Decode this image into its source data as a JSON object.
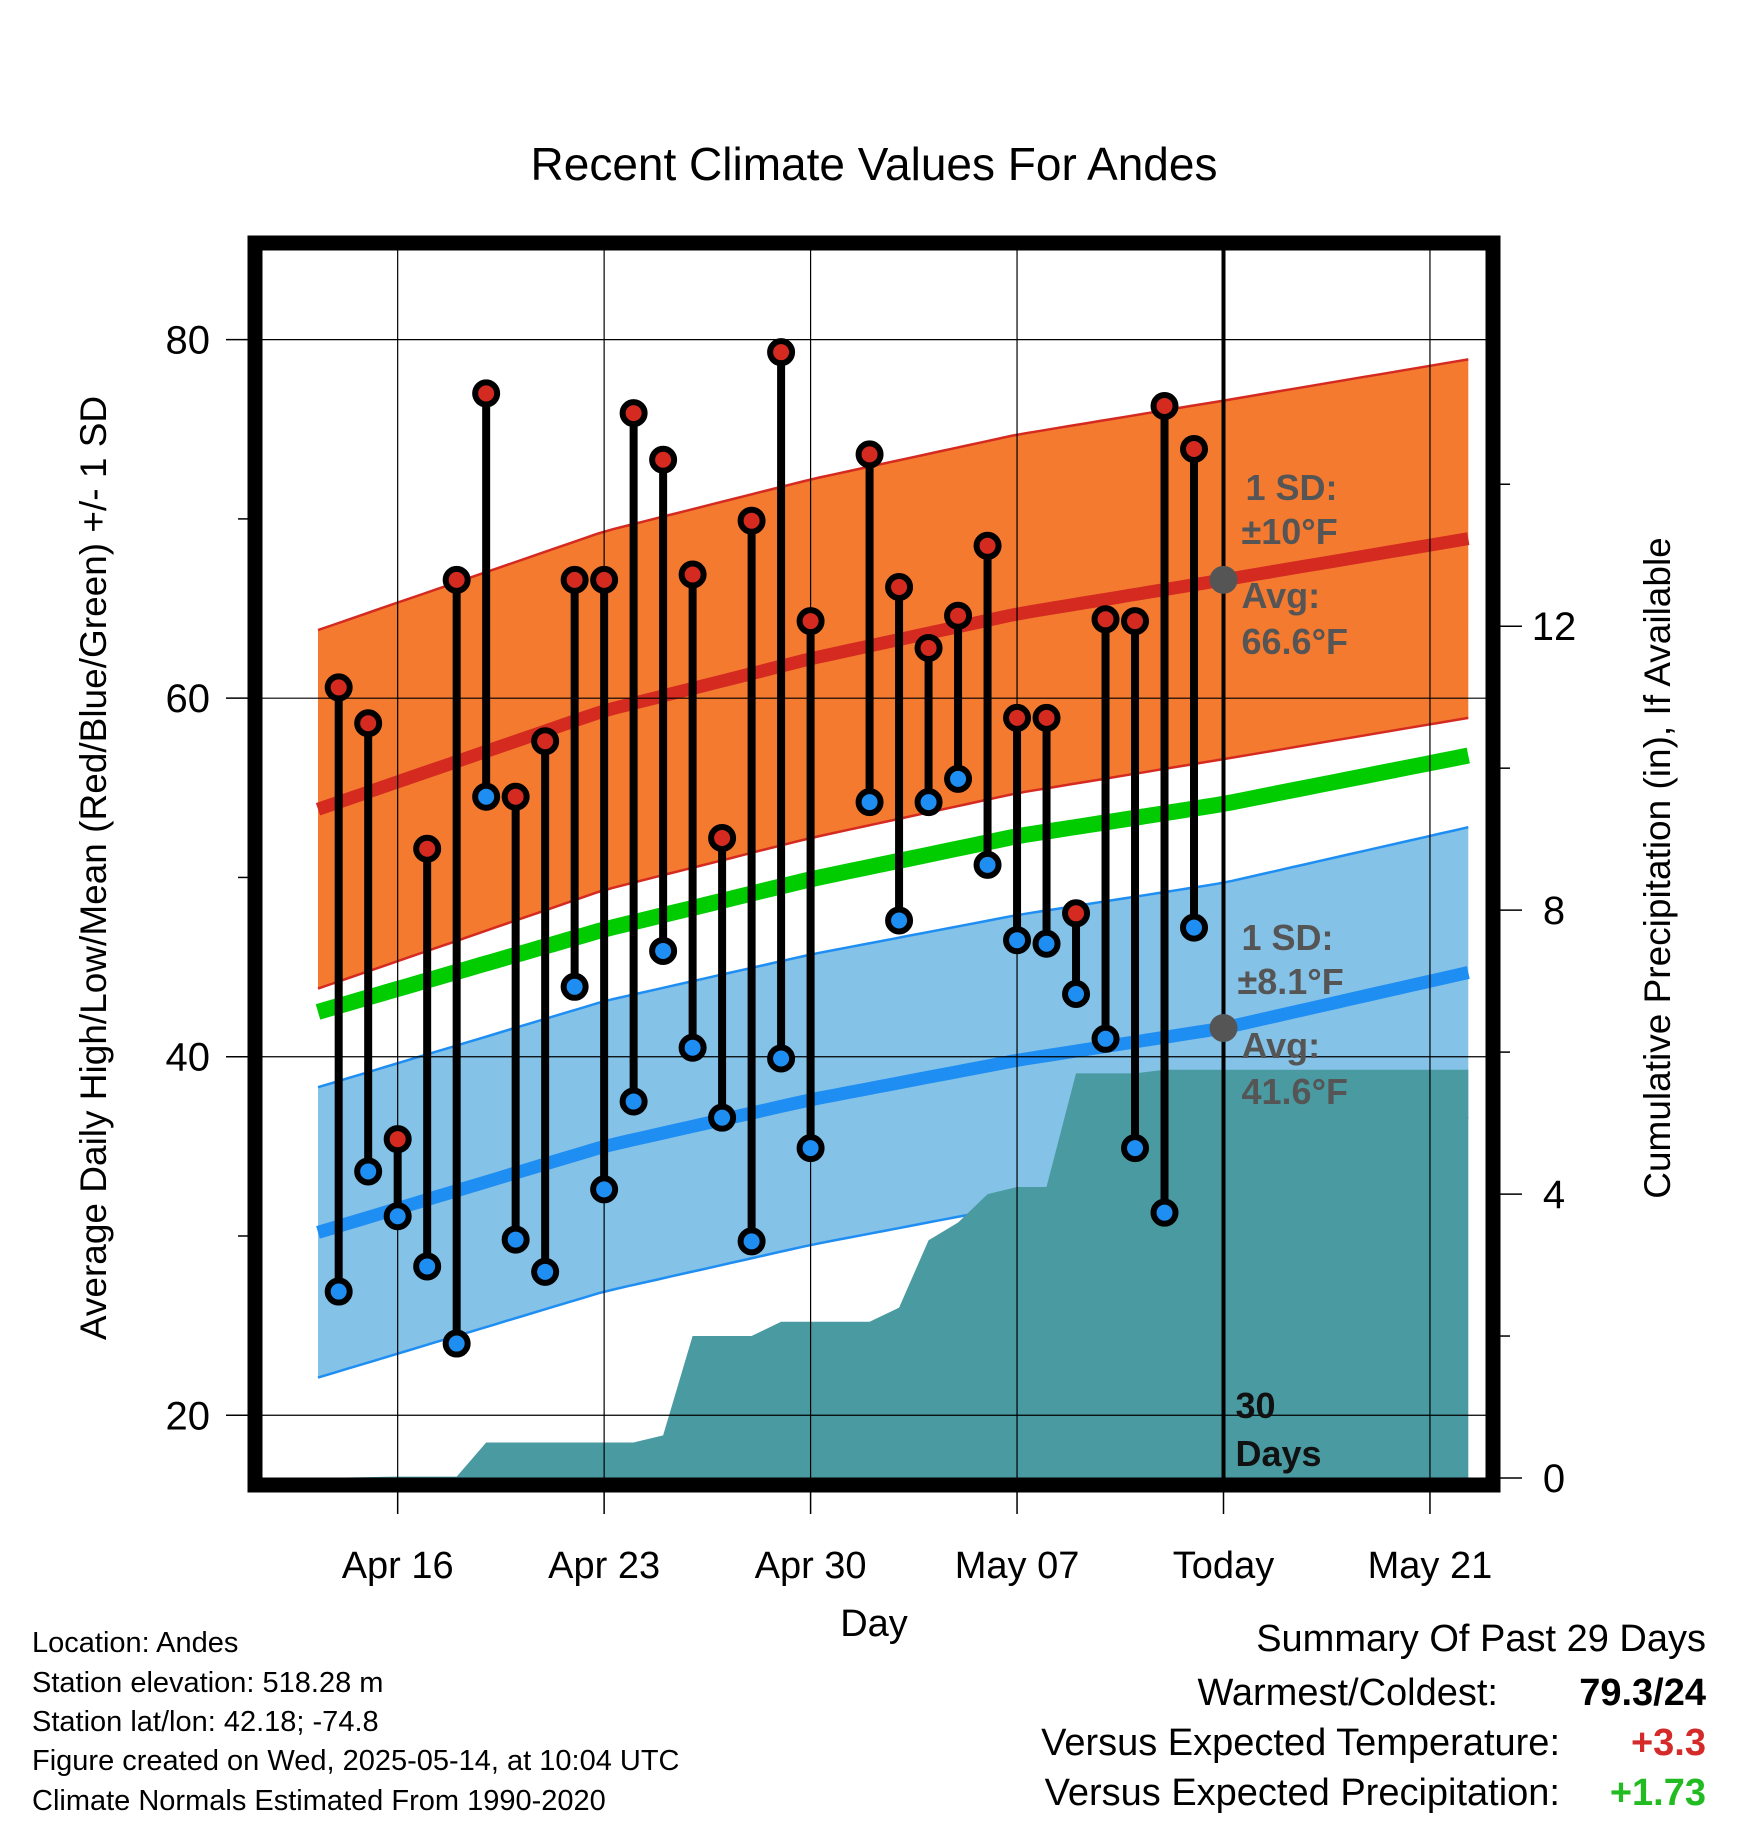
{
  "chart_data": {
    "type": "line",
    "title": "Recent Climate Values For Andes",
    "xlabel": "Day",
    "ylabel": "Average Daily High/Low/Mean (Red/Blue/Green) +/- 1 SD",
    "y2label": "Cumulative Precipitation (in), If Available",
    "ylim": [
      16.5,
      85
    ],
    "y2lim": [
      0,
      17.3
    ],
    "xlim": [
      -4.6,
      36.9
    ],
    "yticks": [
      20,
      40,
      60,
      80
    ],
    "y2ticks": [
      0,
      4,
      8,
      12
    ],
    "xticks": [
      {
        "day": 0,
        "label": "Apr 16"
      },
      {
        "day": 7,
        "label": "Apr 23"
      },
      {
        "day": 14,
        "label": "Apr 30"
      },
      {
        "day": 21,
        "label": "May 07"
      },
      {
        "day": 28,
        "label": "Today"
      },
      {
        "day": 35,
        "label": "May 21"
      }
    ],
    "x_day_zero": "Apr 16",
    "grid": true,
    "today_day": 28,
    "today_label": [
      "30",
      "Days"
    ],
    "normals": {
      "high_mean": [
        [
          -2.7,
          53.8
        ],
        [
          7,
          59.3
        ],
        [
          14,
          62.2
        ],
        [
          21,
          64.7
        ],
        [
          28,
          66.6
        ],
        [
          36.3,
          68.9
        ]
      ],
      "high_sd": 10,
      "low_mean": [
        [
          -2.7,
          30.2
        ],
        [
          7,
          35.0
        ],
        [
          14,
          37.6
        ],
        [
          21,
          39.8
        ],
        [
          28,
          41.6
        ],
        [
          36.3,
          44.7
        ]
      ],
      "low_sd": 8.1,
      "daily_mean": [
        [
          -2.7,
          42.5
        ],
        [
          7,
          47.1
        ],
        [
          14,
          49.9
        ],
        [
          21,
          52.3
        ],
        [
          28,
          54.1
        ],
        [
          36.3,
          56.8
        ]
      ]
    },
    "annotations": {
      "high": {
        "sd_title": "1 SD:",
        "sd_value": "±10°F",
        "avg_title": "Avg:",
        "avg_value": "66.6°F",
        "avg": 66.6
      },
      "low": {
        "sd_title": "1 SD:",
        "sd_value": "±8.1°F",
        "avg_title": "Avg:",
        "avg_value": "41.6°F",
        "avg": 41.6
      }
    },
    "observations": [
      {
        "day": -2,
        "high": 60.6,
        "low": 26.9
      },
      {
        "day": -1,
        "high": 58.6,
        "low": 33.6
      },
      {
        "day": 0,
        "high": 35.4,
        "low": 31.1
      },
      {
        "day": 1,
        "high": 51.6,
        "low": 28.3
      },
      {
        "day": 2,
        "high": 66.6,
        "low": 24.0
      },
      {
        "day": 3,
        "high": 77.0,
        "low": 54.5
      },
      {
        "day": 4,
        "high": 54.5,
        "low": 29.8
      },
      {
        "day": 5,
        "high": 57.6,
        "low": 28.0
      },
      {
        "day": 6,
        "high": 66.6,
        "low": 43.9
      },
      {
        "day": 7,
        "high": 66.6,
        "low": 32.6
      },
      {
        "day": 8,
        "high": 75.9,
        "low": 37.5
      },
      {
        "day": 9,
        "high": 73.3,
        "low": 45.9
      },
      {
        "day": 10,
        "high": 66.9,
        "low": 40.5
      },
      {
        "day": 11,
        "high": 52.2,
        "low": 36.6
      },
      {
        "day": 12,
        "high": 69.9,
        "low": 29.7
      },
      {
        "day": 13,
        "high": 79.3,
        "low": 39.9
      },
      {
        "day": 14,
        "high": 64.3,
        "low": 34.9
      },
      {
        "day": 16,
        "high": 73.6,
        "low": 54.2
      },
      {
        "day": 17,
        "high": 66.2,
        "low": 47.6
      },
      {
        "day": 18,
        "high": 62.8,
        "low": 54.2
      },
      {
        "day": 19,
        "high": 64.6,
        "low": 55.5
      },
      {
        "day": 20,
        "high": 68.5,
        "low": 50.7
      },
      {
        "day": 21,
        "high": 58.9,
        "low": 46.5
      },
      {
        "day": 22,
        "high": 58.9,
        "low": 46.3
      },
      {
        "day": 23,
        "high": 48.0,
        "low": 43.5
      },
      {
        "day": 24,
        "high": 64.4,
        "low": 41.0
      },
      {
        "day": 25,
        "high": 64.3,
        "low": 34.9
      },
      {
        "day": 26,
        "high": 76.3,
        "low": 31.3
      },
      {
        "day": 27,
        "high": 73.9,
        "low": 47.2
      }
    ],
    "precip_cumulative": [
      [
        -2.7,
        0
      ],
      [
        0,
        0.02
      ],
      [
        2,
        0.02
      ],
      [
        3,
        0.5
      ],
      [
        8,
        0.5
      ],
      [
        9,
        0.6
      ],
      [
        10,
        2.0
      ],
      [
        12,
        2.0
      ],
      [
        13,
        2.2
      ],
      [
        16,
        2.2
      ],
      [
        17,
        2.4
      ],
      [
        18,
        3.35
      ],
      [
        19,
        3.6
      ],
      [
        20,
        4.0
      ],
      [
        21,
        4.1
      ],
      [
        22,
        4.1
      ],
      [
        23,
        5.7
      ],
      [
        25,
        5.7
      ],
      [
        26,
        5.75
      ],
      [
        36.3,
        5.75
      ]
    ]
  },
  "footer": {
    "location": "Location: Andes",
    "elevation": "Station elevation: 518.28 m",
    "latlon": "Station lat/lon: 42.18; -74.8",
    "created": "Figure created on Wed, 2025-05-14, at 10:04 UTC",
    "normals": "Climate Normals Estimated From 1990-2020"
  },
  "summary": {
    "title": "Summary Of Past 29 Days",
    "warm_cold_label": "Warmest/Coldest:",
    "warm_cold_value": "79.3/24",
    "temp_label": "Versus Expected Temperature:",
    "temp_value": "+3.3",
    "precip_label": "Versus Expected Precipitation:",
    "precip_value": "+1.73"
  },
  "colors": {
    "high_band": "#f47a30",
    "high_line": "#d42a20",
    "low_band": "#84c2e8",
    "low_line": "#1f8ef2",
    "mean_line": "#00cc00",
    "precip": "#4a9aa2",
    "marker_high": "#d42a20",
    "marker_low": "#1f8ef2",
    "annotation": "#555555",
    "temp_anomaly": "#d42a2a",
    "precip_anomaly": "#22bb22"
  }
}
